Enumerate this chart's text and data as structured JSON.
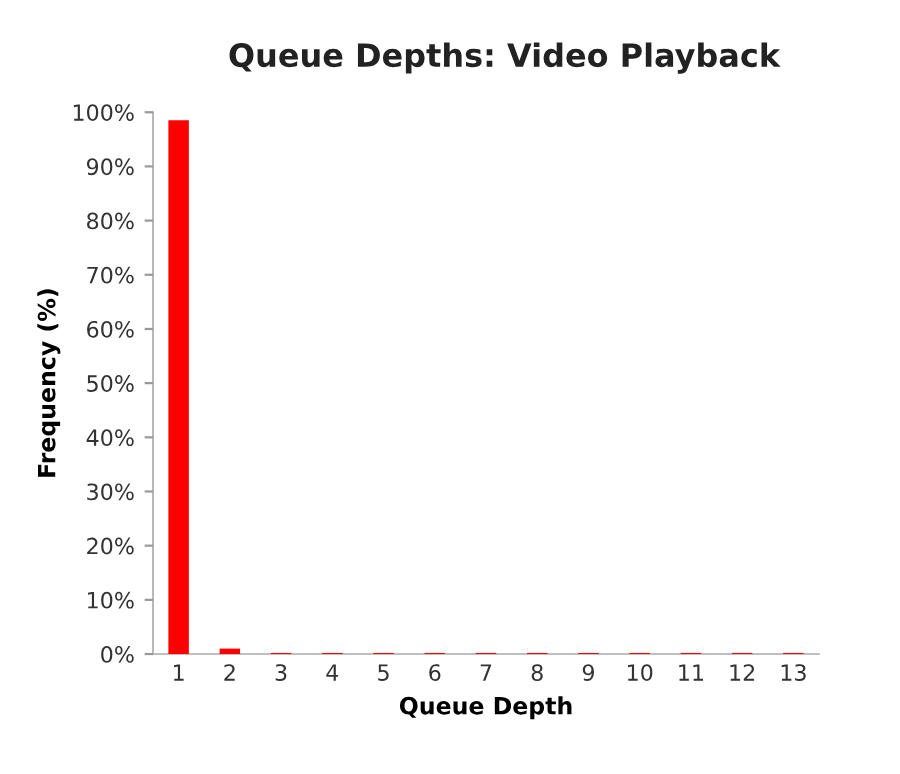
{
  "chart_data": {
    "type": "bar",
    "title": "Queue Depths: Video Playback",
    "xlabel": "Queue Depth",
    "ylabel": "Frequency (%)",
    "categories": [
      "1",
      "2",
      "3",
      "4",
      "5",
      "6",
      "7",
      "8",
      "9",
      "10",
      "11",
      "12",
      "13"
    ],
    "values": [
      98.5,
      1.0,
      0.2,
      0.2,
      0.2,
      0.2,
      0.2,
      0.2,
      0.2,
      0.2,
      0.2,
      0.2,
      0.2
    ],
    "color": "#ff0000",
    "ylim": [
      0,
      100
    ],
    "yticks": [
      {
        "value": 0,
        "label": "0%"
      },
      {
        "value": 10,
        "label": "10%"
      },
      {
        "value": 20,
        "label": "20%"
      },
      {
        "value": 30,
        "label": "30%"
      },
      {
        "value": 40,
        "label": "40%"
      },
      {
        "value": 50,
        "label": "50%"
      },
      {
        "value": 60,
        "label": "60%"
      },
      {
        "value": 70,
        "label": "70%"
      },
      {
        "value": 80,
        "label": "80%"
      },
      {
        "value": 90,
        "label": "90%"
      },
      {
        "value": 100,
        "label": "100%"
      }
    ],
    "grid": false,
    "legend": false
  }
}
